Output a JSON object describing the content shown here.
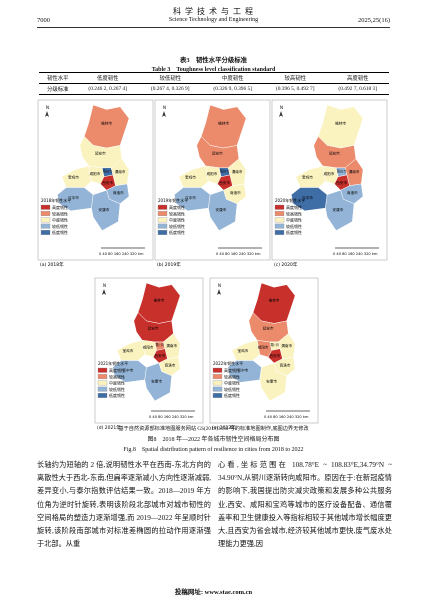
{
  "header": {
    "journal_cn": "科 学 技 术 与 工 程",
    "journal_en": "Science Technology and Engineering",
    "page": "7000",
    "issue": "2025,25(16)"
  },
  "table": {
    "title_cn": "表3　韧性水平分级标准",
    "title_en": "Table 3　Toughness level classification standard",
    "header": [
      "韧性水平",
      "低度韧性",
      "较低韧性",
      "中度韧性",
      "较高韧性",
      "高度韧性"
    ],
    "rows": [
      [
        "分级标准",
        "(0.246 2, 0.267 4]",
        "(0.267 4, 0.326 9]",
        "(0.326 9, 0.396 5]",
        "(0.396 5, 0.492 7]",
        "(0.492 7, 0.618 3]"
      ]
    ]
  },
  "figure": {
    "levels": [
      {
        "name": "高度韧性",
        "color": "#c8302c"
      },
      {
        "name": "较高韧性",
        "color": "#ec8a6c"
      },
      {
        "name": "中度韧性",
        "color": "#fbf3bf"
      },
      {
        "name": "较低韧性",
        "color": "#93b4d6"
      },
      {
        "name": "低度韧性",
        "color": "#3f6ea6"
      }
    ],
    "legend_titles": [
      "2018年韧性水平",
      "2019年韧性水平",
      "2020年韧性水平",
      "2021年韧性水平",
      "2022年韧性水平"
    ],
    "captions": [
      "(a) 2018年",
      "(b) 2019年",
      "(c) 2020年",
      "(d) 2021年",
      "(e) 2022年"
    ],
    "scale": "0 40 80  160  240  320 km",
    "north": "N",
    "cities": [
      "榆林市",
      "延安市",
      "铜川市",
      "宝鸡市",
      "咸阳市",
      "渭南市",
      "西安市",
      "汉中市",
      "安康市",
      "商洛市"
    ],
    "note": "基于自然资源部标准地图服务网站 GS(2019)3333 号的标准地图制作,底图边界无修改",
    "title_cn": "图8　2018 年—2022 年各城市韧性空间格局分布图",
    "title_en": "Fig.8　Spatial distribution pattern of resilience in cities from 2018 to 2022"
  },
  "body": {
    "left": "长轴约为短轴的 2 倍,说明韧性水平在西南-东北方向的离散性大于西北-东南,但扁率逐渐减小,方向性逐渐减弱,差异变小,与泰尔指数评估结果一致。2018—2019 年方位角为逆时针旋转,表明该阶段北部城市对城市韧性的空间格局的塑造力逐渐增强,而 2019—2022 年呈顺时针旋转,该阶段南部城市对标准差椭圆的拉动作用逐渐强于北部。从重",
    "right": "心看,坐标范围在 108.78°E ~ 108.83°E,34.79°N ~ 34.90°N,从铜川逐渐转向咸阳市。原因在于:在新冠疫情的影响下,我国提出防灾减灾政策和发展多种公共服务业,西安、咸阳和宝鸡等城市的医疗设备配备、通信覆盖率和卫生健康投入等指标相较于其他城市增长幅度更大,且西安为省会城市,经济较其他城市更快,废气废水处理能力更强,因"
  },
  "footer": "投稿网址: www.stae.com.cn"
}
